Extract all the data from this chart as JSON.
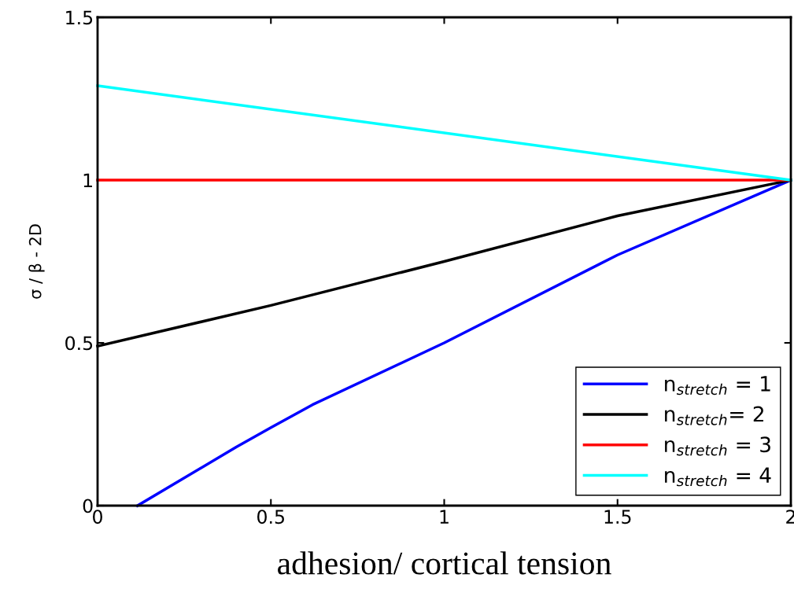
{
  "chart_data": {
    "type": "line",
    "xlabel": "adhesion/ cortical tension",
    "ylabel": "σ / β - 2D",
    "xlim": [
      0,
      2
    ],
    "ylim": [
      0,
      1.5
    ],
    "xticks": [
      0,
      0.5,
      1,
      1.5,
      2
    ],
    "yticks": [
      0,
      0.5,
      1,
      1.5
    ],
    "grid": false,
    "legend": "bottom right",
    "marker": "none",
    "line_style": "solid",
    "series": [
      {
        "name": "n$_{stretch}$ = 1",
        "color": "#0000ff",
        "x": [
          0.115,
          0.4,
          0.5,
          0.62,
          1,
          1.5,
          2
        ],
        "values": [
          0,
          0.18,
          0.24,
          0.31,
          0.5,
          0.77,
          1
        ]
      },
      {
        "name": "n$_{stretch}$= 2",
        "color": "#000000",
        "x": [
          0,
          0.5,
          1,
          1.5,
          2
        ],
        "values": [
          0.49,
          0.615,
          0.75,
          0.89,
          1
        ]
      },
      {
        "name": "n$_{stretch}$ = 3",
        "color": "#ff0000",
        "x": [
          0,
          2
        ],
        "values": [
          1,
          1
        ]
      },
      {
        "name": "n$_{stretch}$ = 4",
        "color": "#00ffff",
        "x": [
          0,
          2
        ],
        "values": [
          1.29,
          1
        ]
      }
    ]
  }
}
